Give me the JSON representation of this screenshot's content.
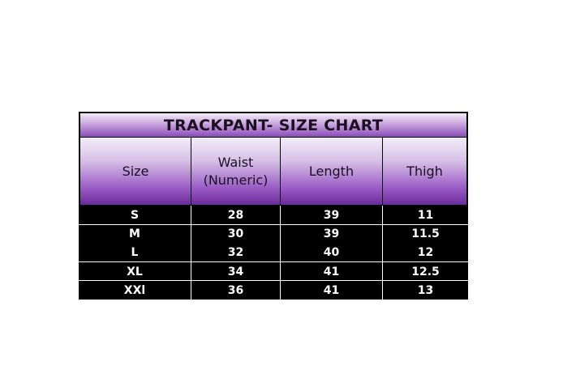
{
  "chart_data": {
    "type": "table",
    "title": "TRACKPANT- SIZE CHART",
    "columns": [
      "Size",
      "Waist (Numeric)",
      "Length",
      "Thigh"
    ],
    "header_lines": [
      [
        "Size"
      ],
      [
        "Waist",
        "(Numeric)"
      ],
      [
        "Length"
      ],
      [
        "Thigh"
      ]
    ],
    "rows": [
      [
        "S",
        "28",
        "39",
        "11"
      ],
      [
        "M",
        "30",
        "39",
        "11.5"
      ],
      [
        "L",
        "32",
        "40",
        "12"
      ],
      [
        "XL",
        "34",
        "41",
        "12.5"
      ],
      [
        "XXl",
        "36",
        "41",
        "13"
      ]
    ],
    "colors": {
      "header_gradient_top": "#f4eef8",
      "header_gradient_bottom": "#6a2a9c",
      "body_background": "#000000",
      "body_text": "#ffffff"
    }
  }
}
